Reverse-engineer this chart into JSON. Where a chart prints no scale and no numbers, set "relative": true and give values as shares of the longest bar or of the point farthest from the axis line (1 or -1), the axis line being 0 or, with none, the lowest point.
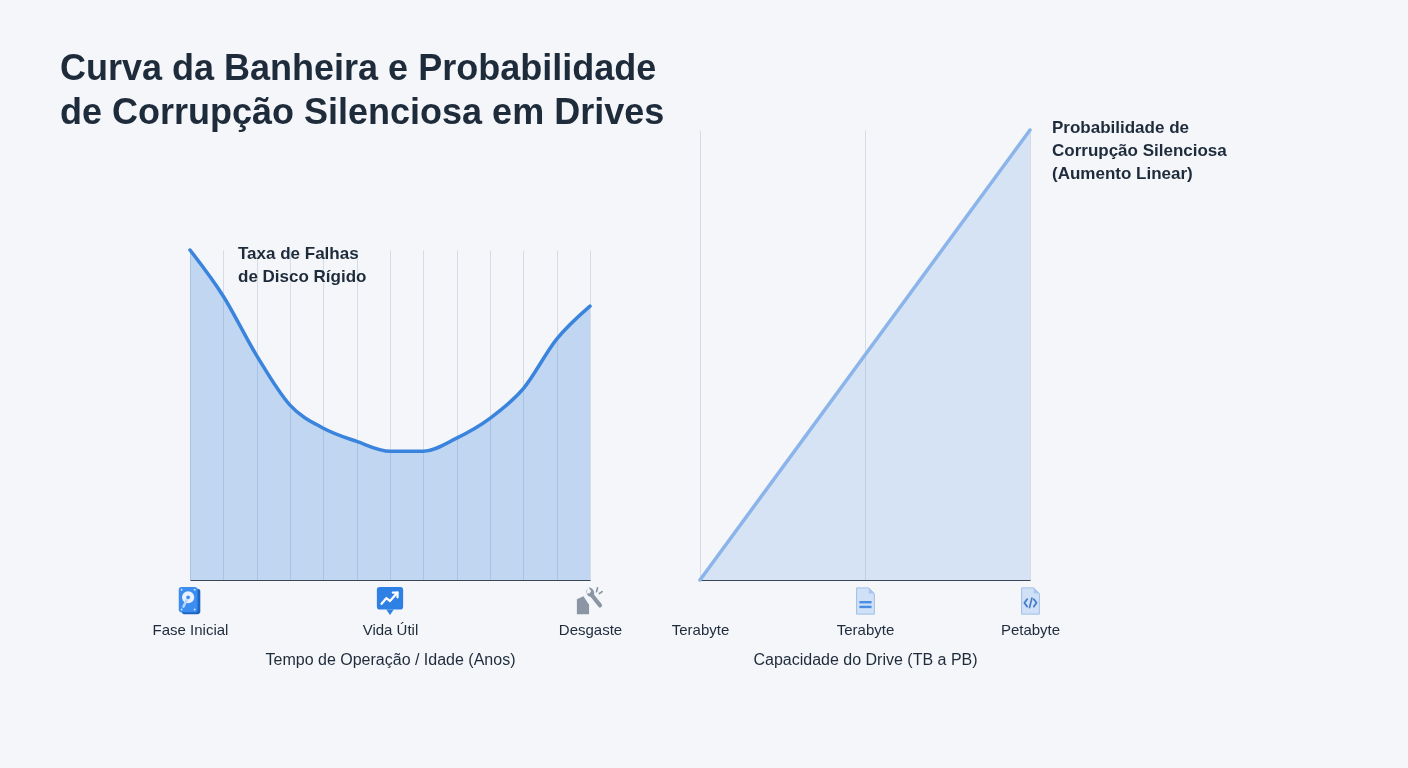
{
  "chart_data": [
    {
      "type": "area",
      "title": "Curva da Banheira e Probabilidade de Corrupção Silenciosa em Drives",
      "xlabel": "Tempo de Operação / Idade (Anos)",
      "categories": [
        "Fase Inicial",
        null,
        null,
        null,
        null,
        null,
        "Vida Útil",
        null,
        null,
        null,
        null,
        null,
        "Desgaste"
      ],
      "relative": true,
      "grid": "x",
      "series": [
        {
          "name": "Taxa de Falhas de Disco Rígido",
          "color": "#3a84de",
          "values": [
            1,
            0.86,
            0.68,
            0.53,
            0.46,
            0.42,
            0.39,
            0.39,
            0.43,
            0.49,
            0.58,
            0.73,
            0.83
          ]
        }
      ]
    },
    {
      "type": "area",
      "xlabel": "Capacidade do Drive (TB a PB)",
      "categories": [
        "Terabyte",
        "Terabyte",
        "Petabyte"
      ],
      "relative": true,
      "grid": "x",
      "series": [
        {
          "name": "Probabilidade de Corrupção Silenciosa (Aumento Linear)",
          "color": "#8ab4ea",
          "values": [
            0,
            0.5,
            1
          ]
        }
      ]
    }
  ]
}
